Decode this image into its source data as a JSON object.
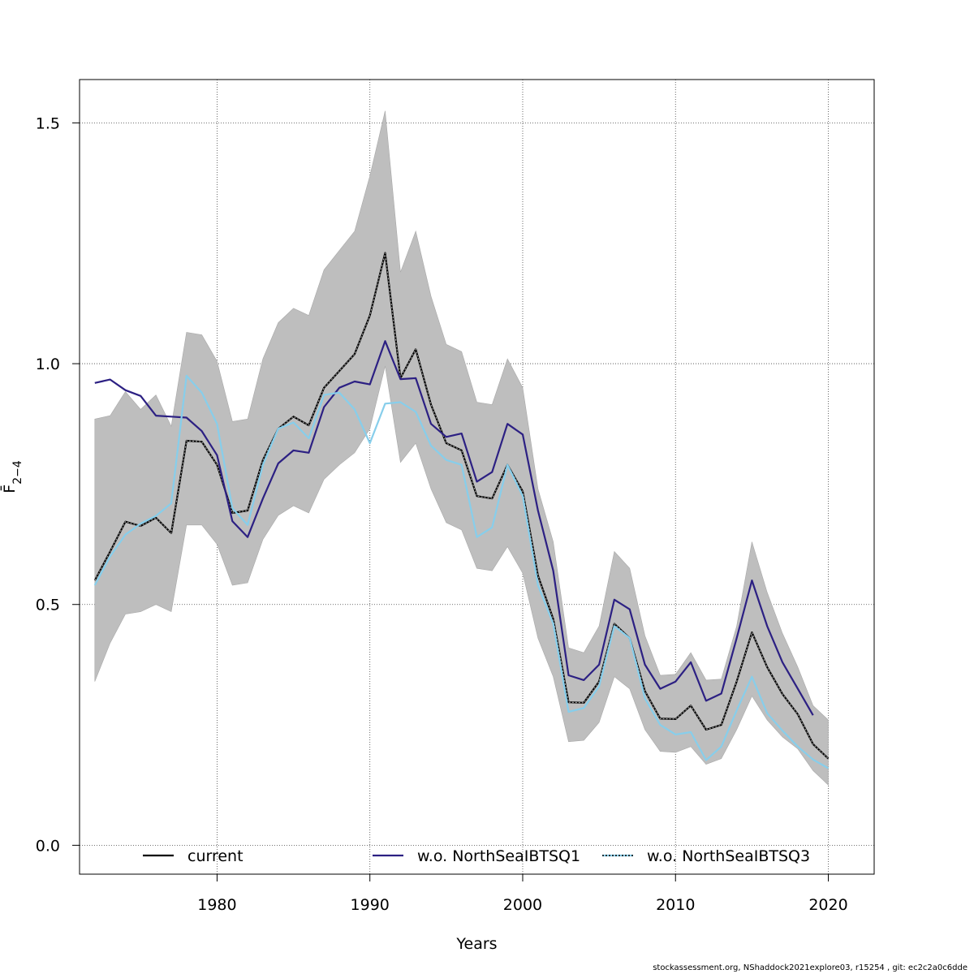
{
  "chart_data": {
    "type": "line",
    "xlabel": "Years",
    "ylabel": "F̄",
    "ylabel_sub": "2−4",
    "xlim": [
      1971.0,
      2023.0
    ],
    "ylim": [
      -0.06,
      1.59
    ],
    "x_ticks": [
      1980,
      1990,
      2000,
      2010,
      2020
    ],
    "x_tick_labels": [
      "1980",
      "1990",
      "2000",
      "2010",
      "2020"
    ],
    "y_ticks": [
      0.0,
      0.5,
      1.0,
      1.5
    ],
    "y_tick_labels": [
      "0.0",
      "0.5",
      "1.0",
      "1.5"
    ],
    "grid": true,
    "legend_position": "bottom",
    "x": [
      1972,
      1973,
      1974,
      1975,
      1976,
      1977,
      1978,
      1979,
      1980,
      1981,
      1982,
      1983,
      1984,
      1985,
      1986,
      1987,
      1988,
      1989,
      1990,
      1991,
      1992,
      1993,
      1994,
      1995,
      1996,
      1997,
      1998,
      1999,
      2000,
      2001,
      2002,
      2003,
      2004,
      2005,
      2006,
      2007,
      2008,
      2009,
      2010,
      2011,
      2012,
      2013,
      2014,
      2015,
      2016,
      2017,
      2018,
      2019,
      2020
    ],
    "confidence_band": {
      "lower": [
        0.34,
        0.42,
        0.48,
        0.485,
        0.5,
        0.485,
        0.665,
        0.665,
        0.625,
        0.54,
        0.545,
        0.635,
        0.685,
        0.705,
        0.69,
        0.76,
        0.79,
        0.815,
        0.865,
        0.995,
        0.795,
        0.835,
        0.74,
        0.67,
        0.655,
        0.575,
        0.57,
        0.62,
        0.565,
        0.43,
        0.35,
        0.215,
        0.218,
        0.255,
        0.35,
        0.325,
        0.24,
        0.195,
        0.193,
        0.205,
        0.168,
        0.18,
        0.24,
        0.31,
        0.26,
        0.225,
        0.2,
        0.155,
        0.125
      ],
      "upper": [
        0.885,
        0.892,
        0.942,
        0.905,
        0.935,
        0.87,
        1.065,
        1.06,
        1.005,
        0.88,
        0.885,
        1.01,
        1.085,
        1.115,
        1.1,
        1.195,
        1.235,
        1.275,
        1.39,
        1.525,
        1.19,
        1.275,
        1.14,
        1.04,
        1.025,
        0.92,
        0.915,
        1.01,
        0.95,
        0.74,
        0.63,
        0.41,
        0.4,
        0.455,
        0.61,
        0.575,
        0.435,
        0.353,
        0.355,
        0.4,
        0.343,
        0.345,
        0.455,
        0.63,
        0.525,
        0.44,
        0.37,
        0.29,
        0.26
      ]
    },
    "series": [
      {
        "name": "current",
        "color": "#000000",
        "values": [
          0.55,
          0.61,
          0.672,
          0.663,
          0.68,
          0.648,
          0.84,
          0.838,
          0.79,
          0.69,
          0.695,
          0.8,
          0.865,
          0.89,
          0.872,
          0.95,
          0.985,
          1.02,
          1.1,
          1.23,
          0.97,
          1.03,
          0.915,
          0.835,
          0.82,
          0.725,
          0.72,
          0.79,
          0.735,
          0.56,
          0.47,
          0.297,
          0.296,
          0.34,
          0.46,
          0.43,
          0.32,
          0.263,
          0.262,
          0.29,
          0.24,
          0.25,
          0.34,
          0.442,
          0.37,
          0.314,
          0.272,
          0.21,
          0.18
        ]
      },
      {
        "name": "w.o. NorthSeaIBTSQ1",
        "color": "#2c2083",
        "values": [
          0.96,
          0.967,
          0.945,
          0.933,
          0.892,
          0.89,
          0.888,
          0.86,
          0.81,
          0.673,
          0.64,
          0.72,
          0.793,
          0.82,
          0.815,
          0.91,
          0.95,
          0.963,
          0.957,
          1.047,
          0.968,
          0.97,
          0.875,
          0.848,
          0.855,
          0.755,
          0.775,
          0.875,
          0.853,
          0.695,
          0.57,
          0.353,
          0.343,
          0.375,
          0.51,
          0.49,
          0.375,
          0.325,
          0.34,
          0.38,
          0.3,
          0.315,
          0.43,
          0.55,
          0.455,
          0.38,
          0.325,
          0.27,
          null
        ]
      },
      {
        "name": "w.o. NorthSeaIBTSQ3",
        "color": "#87ceeb",
        "values": [
          0.54,
          0.6,
          0.645,
          0.668,
          0.684,
          0.71,
          0.975,
          0.94,
          0.875,
          0.7,
          0.665,
          0.79,
          0.865,
          0.878,
          0.845,
          0.935,
          0.94,
          0.905,
          0.835,
          0.917,
          0.92,
          0.9,
          0.83,
          0.8,
          0.79,
          0.64,
          0.66,
          0.79,
          0.725,
          0.54,
          0.46,
          0.277,
          0.285,
          0.33,
          0.455,
          0.43,
          0.305,
          0.25,
          0.23,
          0.235,
          0.177,
          0.205,
          0.28,
          0.35,
          0.274,
          0.238,
          0.205,
          0.178,
          0.16
        ]
      }
    ]
  },
  "footer": "stockassessment.org, NShaddock2021explore03, r15254 , git: ec2c2a0c6dde"
}
